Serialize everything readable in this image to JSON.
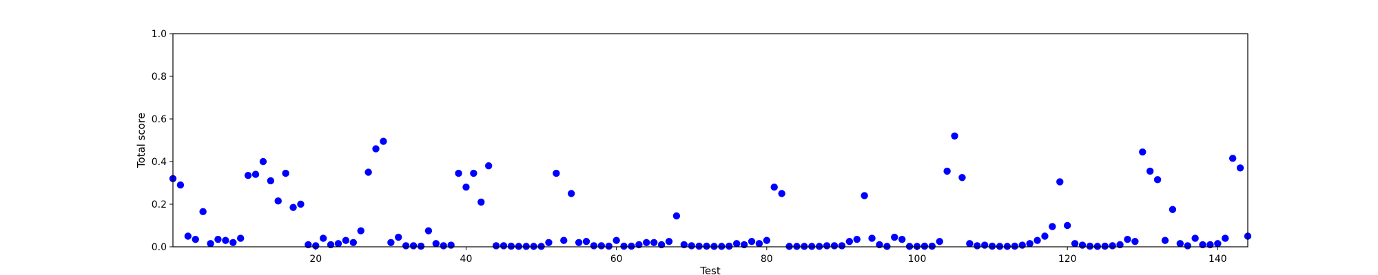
{
  "chart_data": {
    "type": "scatter",
    "xlabel": "Test",
    "ylabel": "Total score",
    "xlim": [
      1,
      144
    ],
    "ylim": [
      0,
      1.0
    ],
    "xticks": [
      20,
      40,
      60,
      80,
      100,
      120,
      140
    ],
    "yticks": [
      "0.0",
      "0.2",
      "0.4",
      "0.6",
      "0.8",
      "1.0"
    ],
    "grid": false,
    "marker_color": "#0000ff",
    "x": [
      1,
      2,
      3,
      4,
      5,
      6,
      7,
      8,
      9,
      10,
      11,
      12,
      13,
      14,
      15,
      16,
      17,
      18,
      19,
      20,
      21,
      22,
      23,
      24,
      25,
      26,
      27,
      28,
      29,
      30,
      31,
      32,
      33,
      34,
      35,
      36,
      37,
      38,
      39,
      40,
      41,
      42,
      43,
      44,
      45,
      46,
      47,
      48,
      49,
      50,
      51,
      52,
      53,
      54,
      55,
      56,
      57,
      58,
      59,
      60,
      61,
      62,
      63,
      64,
      65,
      66,
      67,
      68,
      69,
      70,
      71,
      72,
      73,
      74,
      75,
      76,
      77,
      78,
      79,
      80,
      81,
      82,
      83,
      84,
      85,
      86,
      87,
      88,
      89,
      90,
      91,
      92,
      93,
      94,
      95,
      96,
      97,
      98,
      99,
      100,
      101,
      102,
      103,
      104,
      105,
      106,
      107,
      108,
      109,
      110,
      111,
      112,
      113,
      114,
      115,
      116,
      117,
      118,
      119,
      120,
      121,
      122,
      123,
      124,
      125,
      126,
      127,
      128,
      129,
      130,
      131,
      132,
      133,
      134,
      135,
      136,
      137,
      138,
      139,
      140,
      141,
      142,
      143,
      144
    ],
    "y": [
      0.32,
      0.29,
      0.05,
      0.035,
      0.165,
      0.015,
      0.035,
      0.03,
      0.02,
      0.04,
      0.335,
      0.34,
      0.4,
      0.31,
      0.215,
      0.345,
      0.185,
      0.2,
      0.01,
      0.005,
      0.04,
      0.01,
      0.015,
      0.03,
      0.02,
      0.075,
      0.35,
      0.46,
      0.495,
      0.02,
      0.045,
      0.005,
      0.005,
      0.003,
      0.075,
      0.015,
      0.005,
      0.008,
      0.345,
      0.28,
      0.345,
      0.21,
      0.38,
      0.005,
      0.005,
      0.003,
      0.002,
      0.002,
      0.002,
      0.002,
      0.02,
      0.345,
      0.03,
      0.25,
      0.02,
      0.025,
      0.005,
      0.005,
      0.003,
      0.03,
      0.003,
      0.003,
      0.01,
      0.02,
      0.02,
      0.01,
      0.025,
      0.145,
      0.01,
      0.005,
      0.003,
      0.003,
      0.002,
      0.002,
      0.003,
      0.015,
      0.01,
      0.025,
      0.015,
      0.03,
      0.28,
      0.25,
      0.002,
      0.002,
      0.002,
      0.002,
      0.002,
      0.005,
      0.005,
      0.005,
      0.025,
      0.035,
      0.24,
      0.04,
      0.01,
      0.002,
      0.045,
      0.035,
      0.002,
      0.002,
      0.003,
      0.003,
      0.025,
      0.355,
      0.52,
      0.325,
      0.015,
      0.005,
      0.008,
      0.003,
      0.002,
      0.002,
      0.003,
      0.008,
      0.015,
      0.03,
      0.05,
      0.095,
      0.305,
      0.1,
      0.015,
      0.008,
      0.003,
      0.002,
      0.003,
      0.005,
      0.01,
      0.035,
      0.025,
      0.445,
      0.355,
      0.315,
      0.03,
      0.175,
      0.015,
      0.005,
      0.04,
      0.01,
      0.01,
      0.015,
      0.04,
      0.415,
      0.37,
      0.05
    ]
  }
}
